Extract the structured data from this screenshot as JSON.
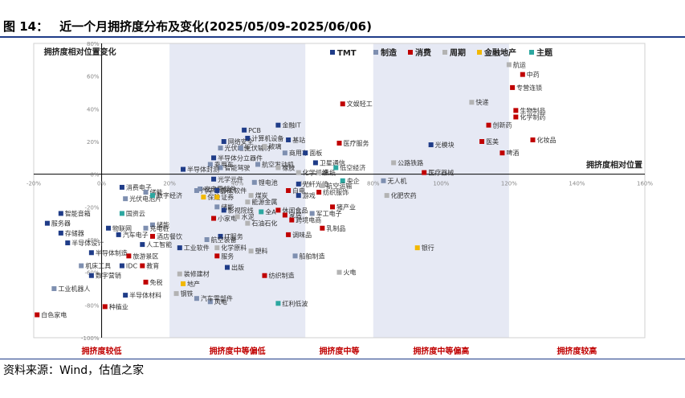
{
  "figure_label": "图 14：",
  "figure_title": "近一个月拥挤度分布及变化(2025/05/09-2025/06/06)",
  "source": "资料来源：Wind，估值之家",
  "colors": {
    "TMT": "#1f3c88",
    "制造": "#7e8fb0",
    "消费": "#c00000",
    "周期": "#b3b3b3",
    "金融地产": "#f2b800",
    "主题": "#2ca7a0",
    "band": "#e6e9f4",
    "band_text": "#c00000"
  },
  "chart_data": {
    "type": "scatter",
    "title": "拥挤度相对位置变化",
    "xlabel": "拥挤度相对位置",
    "xlim": [
      -0.2,
      1.6
    ],
    "ylim": [
      -1.0,
      0.8
    ],
    "x_ticks": [
      "-20%",
      "0%",
      "20%",
      "40%",
      "60%",
      "80%",
      "100%",
      "120%",
      "140%",
      "160%"
    ],
    "y_ticks": [
      "80%",
      "60%",
      "40%",
      "20%",
      "0%",
      "-20%",
      "-40%",
      "-60%",
      "-80%",
      "-100%"
    ],
    "legend": [
      "TMT",
      "制造",
      "消费",
      "周期",
      "金融地产",
      "主题"
    ],
    "legend_position": "top",
    "bands": [
      {
        "label": "拥挤度较低",
        "from": -0.2,
        "to": 0.2,
        "shaded": false
      },
      {
        "label": "拥挤度中等偏低",
        "from": 0.2,
        "to": 0.6,
        "shaded": true
      },
      {
        "label": "拥挤度中等",
        "from": 0.6,
        "to": 0.8,
        "shaded": false
      },
      {
        "label": "拥挤度中等偏高",
        "from": 0.8,
        "to": 1.2,
        "shaded": true
      },
      {
        "label": "拥挤度较高",
        "from": 1.2,
        "to": 1.6,
        "shaded": false
      }
    ],
    "points": [
      {
        "name": "航运",
        "x": 1.2,
        "y": 0.67,
        "cat": "周期"
      },
      {
        "name": "中药",
        "x": 1.24,
        "y": 0.61,
        "cat": "消费"
      },
      {
        "name": "专营连锁",
        "x": 1.21,
        "y": 0.53,
        "cat": "消费"
      },
      {
        "name": "快递",
        "x": 1.09,
        "y": 0.44,
        "cat": "周期"
      },
      {
        "name": "生物制品",
        "x": 1.22,
        "y": 0.39,
        "cat": "消费"
      },
      {
        "name": "化学制药",
        "x": 1.22,
        "y": 0.35,
        "cat": "消费"
      },
      {
        "name": "创新药",
        "x": 1.14,
        "y": 0.3,
        "cat": "消费"
      },
      {
        "name": "医美",
        "x": 1.12,
        "y": 0.2,
        "cat": "消费"
      },
      {
        "name": "化妆品",
        "x": 1.27,
        "y": 0.21,
        "cat": "消费"
      },
      {
        "name": "啤酒",
        "x": 1.18,
        "y": 0.13,
        "cat": "消费"
      },
      {
        "name": "文娱轻工",
        "x": 0.71,
        "y": 0.43,
        "cat": "消费"
      },
      {
        "name": "光模块",
        "x": 0.97,
        "y": 0.18,
        "cat": "TMT"
      },
      {
        "name": "医疗服务",
        "x": 0.7,
        "y": 0.19,
        "cat": "消费"
      },
      {
        "name": "公路铁路",
        "x": 0.86,
        "y": 0.07,
        "cat": "周期"
      },
      {
        "name": "医疗器械",
        "x": 0.95,
        "y": 0.01,
        "cat": "消费"
      },
      {
        "name": "无人机",
        "x": 0.83,
        "y": -0.04,
        "cat": "制造"
      },
      {
        "name": "化肥农药",
        "x": 0.84,
        "y": -0.13,
        "cat": "周期"
      },
      {
        "name": "银行",
        "x": 0.93,
        "y": -0.45,
        "cat": "金融地产"
      },
      {
        "name": "火电",
        "x": 0.7,
        "y": -0.6,
        "cat": "周期"
      },
      {
        "name": "PCB",
        "x": 0.42,
        "y": 0.27,
        "cat": "TMT"
      },
      {
        "name": "金融IT",
        "x": 0.52,
        "y": 0.3,
        "cat": "TMT"
      },
      {
        "name": "计算机设备",
        "x": 0.43,
        "y": 0.22,
        "cat": "TMT"
      },
      {
        "name": "网络安全",
        "x": 0.36,
        "y": 0.2,
        "cat": "TMT"
      },
      {
        "name": "光伏组件",
        "x": 0.35,
        "y": 0.16,
        "cat": "制造"
      },
      {
        "name": "光伏辅材",
        "x": 0.41,
        "y": 0.16,
        "cat": "制造"
      },
      {
        "name": "玻璃",
        "x": 0.48,
        "y": 0.17,
        "cat": "周期"
      },
      {
        "name": "基站",
        "x": 0.55,
        "y": 0.21,
        "cat": "TMT"
      },
      {
        "name": "商用车",
        "x": 0.54,
        "y": 0.13,
        "cat": "制造"
      },
      {
        "name": "面板",
        "x": 0.6,
        "y": 0.13,
        "cat": "TMT"
      },
      {
        "name": "半导体分立器件",
        "x": 0.33,
        "y": 0.1,
        "cat": "TMT"
      },
      {
        "name": "乘用车",
        "x": 0.32,
        "y": 0.06,
        "cat": "制造"
      },
      {
        "name": "智能驾驶",
        "x": 0.35,
        "y": 0.04,
        "cat": "制造"
      },
      {
        "name": "航空发动机",
        "x": 0.46,
        "y": 0.06,
        "cat": "制造"
      },
      {
        "name": "橡胶",
        "x": 0.52,
        "y": 0.04,
        "cat": "周期"
      },
      {
        "name": "卫星通信",
        "x": 0.63,
        "y": 0.07,
        "cat": "TMT"
      },
      {
        "name": "化学纤维",
        "x": 0.58,
        "y": 0.01,
        "cat": "周期"
      },
      {
        "name": "造纸",
        "x": 0.64,
        "y": 0.01,
        "cat": "周期"
      },
      {
        "name": "低空经济",
        "x": 0.69,
        "y": 0.04,
        "cat": "主题"
      },
      {
        "name": "央企",
        "x": 0.71,
        "y": -0.04,
        "cat": "主题"
      },
      {
        "name": "半导体封测",
        "x": 0.24,
        "y": 0.03,
        "cat": "TMT"
      },
      {
        "name": "光学元件",
        "x": 0.33,
        "y": -0.03,
        "cat": "TMT"
      },
      {
        "name": "锂电池",
        "x": 0.45,
        "y": -0.05,
        "cat": "制造"
      },
      {
        "name": "光纤光缆",
        "x": 0.58,
        "y": -0.06,
        "cat": "TMT"
      },
      {
        "name": "航空运输",
        "x": 0.65,
        "y": -0.07,
        "cat": "周期"
      },
      {
        "name": "家电零部件",
        "x": 0.29,
        "y": -0.09,
        "cat": "制造"
      },
      {
        "name": "汽车零部件",
        "x": 0.28,
        "y": -0.1,
        "cat": "制造"
      },
      {
        "name": "办公软件",
        "x": 0.34,
        "y": -0.1,
        "cat": "TMT"
      },
      {
        "name": "白电",
        "x": 0.55,
        "y": -0.1,
        "cat": "消费"
      },
      {
        "name": "纺织服饰",
        "x": 0.64,
        "y": -0.11,
        "cat": "消费"
      },
      {
        "name": "游戏",
        "x": 0.58,
        "y": -0.13,
        "cat": "TMT"
      },
      {
        "name": "保险",
        "x": 0.3,
        "y": -0.14,
        "cat": "金融地产"
      },
      {
        "name": "证券",
        "x": 0.34,
        "y": -0.14,
        "cat": "金融地产"
      },
      {
        "name": "煤炭",
        "x": 0.44,
        "y": -0.13,
        "cat": "周期"
      },
      {
        "name": "能源金属",
        "x": 0.43,
        "y": -0.17,
        "cat": "周期"
      },
      {
        "name": "储能",
        "x": 0.34,
        "y": -0.2,
        "cat": "制造"
      },
      {
        "name": "小家电",
        "x": 0.33,
        "y": -0.27,
        "cat": "消费"
      },
      {
        "name": "影视院线",
        "x": 0.36,
        "y": -0.22,
        "cat": "TMT"
      },
      {
        "name": "全A",
        "x": 0.47,
        "y": -0.23,
        "cat": "主题"
      },
      {
        "name": "休闲食品",
        "x": 0.52,
        "y": -0.22,
        "cat": "消费"
      },
      {
        "name": "水泥",
        "x": 0.4,
        "y": -0.26,
        "cat": "周期"
      },
      {
        "name": "家居",
        "x": 0.54,
        "y": -0.25,
        "cat": "消费"
      },
      {
        "name": "石油石化",
        "x": 0.43,
        "y": -0.3,
        "cat": "周期"
      },
      {
        "name": "跨境电商",
        "x": 0.56,
        "y": -0.28,
        "cat": "消费"
      },
      {
        "name": "军工电子",
        "x": 0.62,
        "y": -0.24,
        "cat": "制造"
      },
      {
        "name": "猪产业",
        "x": 0.68,
        "y": -0.2,
        "cat": "消费"
      },
      {
        "name": "乳制品",
        "x": 0.65,
        "y": -0.33,
        "cat": "消费"
      },
      {
        "name": "调味品",
        "x": 0.55,
        "y": -0.37,
        "cat": "消费"
      },
      {
        "name": "船舶制造",
        "x": 0.57,
        "y": -0.5,
        "cat": "制造"
      },
      {
        "name": "IT服务",
        "x": 0.35,
        "y": -0.38,
        "cat": "TMT"
      },
      {
        "name": "航空装备",
        "x": 0.31,
        "y": -0.4,
        "cat": "制造"
      },
      {
        "name": "化学原料",
        "x": 0.34,
        "y": -0.45,
        "cat": "周期"
      },
      {
        "name": "塑料",
        "x": 0.44,
        "y": -0.47,
        "cat": "周期"
      },
      {
        "name": "服务",
        "x": 0.34,
        "y": -0.5,
        "cat": "消费"
      },
      {
        "name": "出版",
        "x": 0.37,
        "y": -0.57,
        "cat": "TMT"
      },
      {
        "name": "纺织制造",
        "x": 0.48,
        "y": -0.62,
        "cat": "消费"
      },
      {
        "name": "风电",
        "x": 0.32,
        "y": -0.78,
        "cat": "制造"
      },
      {
        "name": "红利低波",
        "x": 0.52,
        "y": -0.79,
        "cat": "主题"
      },
      {
        "name": "消费电子",
        "x": 0.06,
        "y": -0.08,
        "cat": "TMT"
      },
      {
        "name": "光伏电池片",
        "x": 0.07,
        "y": -0.15,
        "cat": "制造"
      },
      {
        "name": "储能",
        "x": 0.13,
        "y": -0.11,
        "cat": "制造"
      },
      {
        "name": "数字经济",
        "x": 0.15,
        "y": -0.13,
        "cat": "主题"
      },
      {
        "name": "国资云",
        "x": 0.06,
        "y": -0.24,
        "cat": "主题"
      },
      {
        "name": "智能音箱",
        "x": -0.12,
        "y": -0.24,
        "cat": "TMT"
      },
      {
        "name": "服务器",
        "x": -0.16,
        "y": -0.3,
        "cat": "TMT"
      },
      {
        "name": "物联网",
        "x": 0.02,
        "y": -0.33,
        "cat": "TMT"
      },
      {
        "name": "存储器",
        "x": -0.12,
        "y": -0.36,
        "cat": "TMT"
      },
      {
        "name": "汽车电子",
        "x": 0.05,
        "y": -0.37,
        "cat": "TMT"
      },
      {
        "name": "半导体设计",
        "x": -0.1,
        "y": -0.42,
        "cat": "TMT"
      },
      {
        "name": "半导体制造",
        "x": -0.03,
        "y": -0.48,
        "cat": "TMT"
      },
      {
        "name": "旅游景区",
        "x": 0.08,
        "y": -0.5,
        "cat": "消费"
      },
      {
        "name": "机床工具",
        "x": -0.06,
        "y": -0.56,
        "cat": "制造"
      },
      {
        "name": "IDC",
        "x": 0.06,
        "y": -0.56,
        "cat": "TMT"
      },
      {
        "name": "数字营销",
        "x": -0.03,
        "y": -0.62,
        "cat": "TMT"
      },
      {
        "name": "教育",
        "x": 0.12,
        "y": -0.56,
        "cat": "消费"
      },
      {
        "name": "免税",
        "x": 0.13,
        "y": -0.66,
        "cat": "消费"
      },
      {
        "name": "工业机器人",
        "x": -0.14,
        "y": -0.7,
        "cat": "制造"
      },
      {
        "name": "半导体材料",
        "x": 0.07,
        "y": -0.74,
        "cat": "TMT"
      },
      {
        "name": "种植业",
        "x": 0.01,
        "y": -0.81,
        "cat": "消费"
      },
      {
        "name": "白色家电",
        "x": -0.19,
        "y": -0.86,
        "cat": "消费"
      },
      {
        "name": "储能",
        "x": 0.15,
        "y": -0.31,
        "cat": "制造"
      },
      {
        "name": "充电桩",
        "x": 0.13,
        "y": -0.33,
        "cat": "制造"
      },
      {
        "name": "酒店餐饮",
        "x": 0.15,
        "y": -0.38,
        "cat": "消费"
      },
      {
        "name": "人工智能",
        "x": 0.12,
        "y": -0.43,
        "cat": "TMT"
      },
      {
        "name": "工业软件",
        "x": 0.23,
        "y": -0.45,
        "cat": "TMT"
      },
      {
        "name": "装修建材",
        "x": 0.23,
        "y": -0.61,
        "cat": "周期"
      },
      {
        "name": "地产",
        "x": 0.24,
        "y": -0.67,
        "cat": "金融地产"
      },
      {
        "name": "钢铁",
        "x": 0.22,
        "y": -0.73,
        "cat": "周期"
      },
      {
        "name": "汽车零部件",
        "x": 0.28,
        "y": -0.76,
        "cat": "制造"
      }
    ]
  }
}
